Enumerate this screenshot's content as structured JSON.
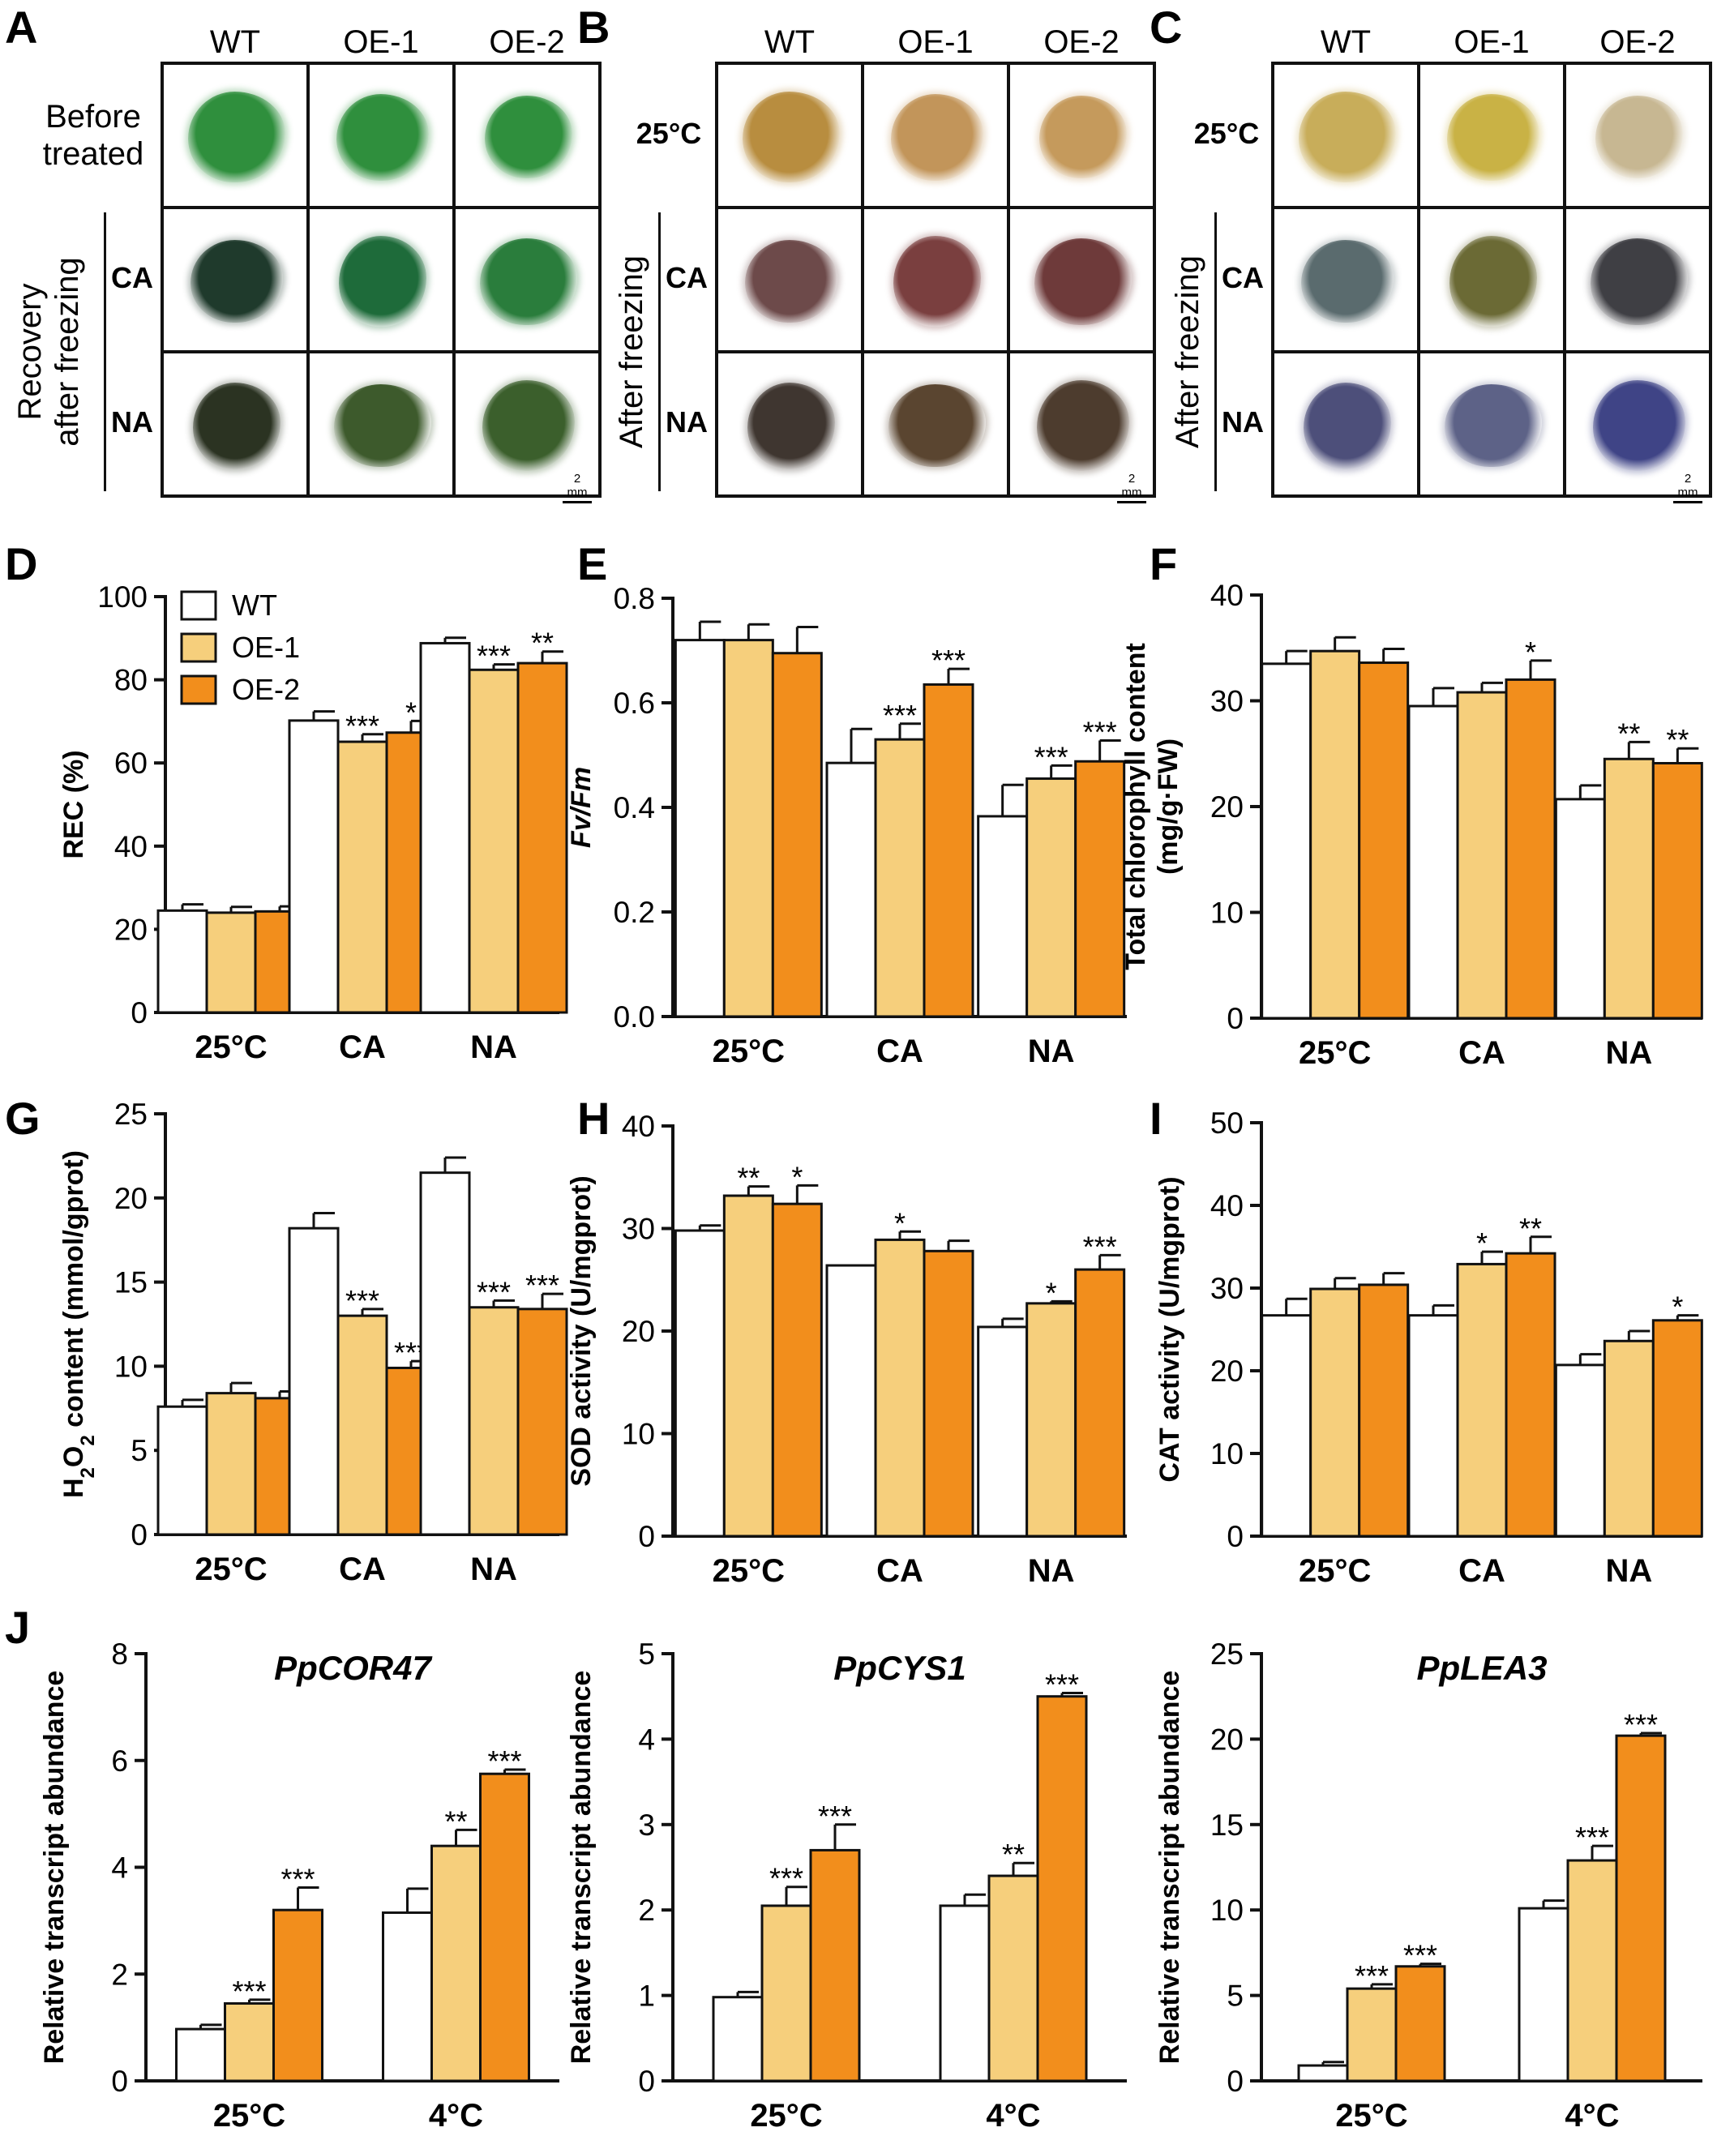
{
  "panel_letters": [
    "A",
    "B",
    "C",
    "D",
    "E",
    "F",
    "G",
    "H",
    "I",
    "J"
  ],
  "photo_panels": [
    {
      "letter": "A",
      "columns": [
        "WT",
        "OE-1",
        "OE-2"
      ],
      "rows": [
        {
          "label": "Before\ntreated",
          "bold": false
        },
        {
          "label": "CA",
          "bold": true
        },
        {
          "label": "NA",
          "bold": true
        }
      ],
      "side_label": "Recovery\nafter freezing",
      "scale": "2 mm",
      "tissue_colors": [
        [
          "#2f8f3d",
          "#2f8f3d",
          "#2f8f3d"
        ],
        [
          "#1f3a2c",
          "#1e6b3a",
          "#2a7d3c"
        ],
        [
          "#2b3322",
          "#3d5a2c",
          "#3b5f2c"
        ]
      ]
    },
    {
      "letter": "B",
      "columns": [
        "WT",
        "OE-1",
        "OE-2"
      ],
      "rows": [
        {
          "label": "25°C",
          "bold": true
        },
        {
          "label": "CA",
          "bold": true
        },
        {
          "label": "NA",
          "bold": true
        }
      ],
      "side_label": "After freezing",
      "scale": "2 mm",
      "tissue_colors": [
        [
          "#b88d3f",
          "#c2955a",
          "#c59a5c"
        ],
        [
          "#6d4a4a",
          "#7a3f3f",
          "#6e3a3a"
        ],
        [
          "#3f3630",
          "#5a4530",
          "#4d3c2e"
        ]
      ]
    },
    {
      "letter": "C",
      "columns": [
        "WT",
        "OE-1",
        "OE-2"
      ],
      "rows": [
        {
          "label": "25°C",
          "bold": true
        },
        {
          "label": "CA",
          "bold": true
        },
        {
          "label": "NA",
          "bold": true
        }
      ],
      "side_label": "After freezing",
      "scale": "2 mm",
      "tissue_colors": [
        [
          "#c8ad5a",
          "#c9b245",
          "#c7b792"
        ],
        [
          "#5a6b6e",
          "#6b6a35",
          "#3f3f44"
        ],
        [
          "#4d4f7a",
          "#5d6287",
          "#3f4486"
        ]
      ]
    }
  ],
  "legend": {
    "entries": [
      "WT",
      "OE-1",
      "OE-2"
    ],
    "colors": [
      "#ffffff",
      "#f6cf7c",
      "#f28e1c"
    ]
  },
  "chart_data": [
    {
      "letter": "D",
      "type": "bar",
      "categories": [
        "25°C",
        "CA",
        "NA"
      ],
      "ylabel": "REC (%)",
      "ylabel_italic": false,
      "ylim": [
        0,
        100
      ],
      "ticks": [
        "0",
        "20",
        "40",
        "60",
        "80",
        "100"
      ],
      "series": [
        {
          "name": "WT",
          "values": [
            24.5,
            70.2,
            88.8
          ],
          "errors": [
            1.5,
            2.2,
            1.3
          ],
          "sig": [
            "",
            "",
            ""
          ]
        },
        {
          "name": "OE-1",
          "values": [
            24.0,
            65.1,
            82.4
          ],
          "errors": [
            1.4,
            1.8,
            1.3
          ],
          "sig": [
            "",
            "***",
            "***"
          ]
        },
        {
          "name": "OE-2",
          "values": [
            24.3,
            67.3,
            84.0
          ],
          "errors": [
            1.2,
            2.8,
            2.8
          ],
          "sig": [
            "",
            "*",
            "**"
          ]
        }
      ]
    },
    {
      "letter": "E",
      "type": "bar",
      "categories": [
        "25°C",
        "CA",
        "NA"
      ],
      "ylabel": "Fv/Fm",
      "ylabel_italic": true,
      "ylim": [
        0,
        0.8
      ],
      "ticks": [
        "0.0",
        "0.2",
        "0.4",
        "0.6",
        "0.8"
      ],
      "series": [
        {
          "name": "WT",
          "values": [
            0.72,
            0.485,
            0.383
          ],
          "errors": [
            0.035,
            0.065,
            0.06
          ],
          "sig": [
            "",
            "",
            ""
          ]
        },
        {
          "name": "OE-1",
          "values": [
            0.72,
            0.53,
            0.455
          ],
          "errors": [
            0.03,
            0.03,
            0.025
          ],
          "sig": [
            "",
            "***",
            "***"
          ]
        },
        {
          "name": "OE-2",
          "values": [
            0.695,
            0.635,
            0.488
          ],
          "errors": [
            0.05,
            0.03,
            0.04
          ],
          "sig": [
            "",
            "***",
            "***"
          ]
        }
      ]
    },
    {
      "letter": "F",
      "type": "bar",
      "categories": [
        "25°C",
        "CA",
        "NA"
      ],
      "ylabel": "Total chlorophyll  content\n(mg/g·FW)",
      "ylabel_italic": false,
      "ylim": [
        0,
        40
      ],
      "ticks": [
        "0",
        "10",
        "20",
        "30",
        "40"
      ],
      "series": [
        {
          "name": "WT",
          "values": [
            33.5,
            29.5,
            20.7
          ],
          "errors": [
            1.2,
            1.7,
            1.3
          ],
          "sig": [
            "",
            "",
            ""
          ]
        },
        {
          "name": "OE-1",
          "values": [
            34.7,
            30.8,
            24.5
          ],
          "errors": [
            1.3,
            0.9,
            1.6
          ],
          "sig": [
            "",
            "",
            "**"
          ]
        },
        {
          "name": "OE-2",
          "values": [
            33.6,
            32.0,
            24.1
          ],
          "errors": [
            1.3,
            1.8,
            1.4
          ],
          "sig": [
            "",
            "*",
            "**"
          ]
        }
      ]
    },
    {
      "letter": "G",
      "type": "bar",
      "categories": [
        "25°C",
        "CA",
        "NA"
      ],
      "ylabel": "H2O2 content (mmol/gprot)",
      "ylabel_italic": false,
      "ylim": [
        0,
        25
      ],
      "ticks": [
        "0",
        "5",
        "10",
        "15",
        "20",
        "25"
      ],
      "series": [
        {
          "name": "WT",
          "values": [
            7.6,
            18.2,
            21.5
          ],
          "errors": [
            0.4,
            0.9,
            0.9
          ],
          "sig": [
            "",
            "",
            ""
          ]
        },
        {
          "name": "OE-1",
          "values": [
            8.4,
            13.0,
            13.5
          ],
          "errors": [
            0.6,
            0.4,
            0.4
          ],
          "sig": [
            "",
            "***",
            "***"
          ]
        },
        {
          "name": "OE-2",
          "values": [
            8.1,
            9.9,
            13.4
          ],
          "errors": [
            0.4,
            0.4,
            0.9
          ],
          "sig": [
            "",
            "***",
            "***"
          ]
        }
      ]
    },
    {
      "letter": "H",
      "type": "bar",
      "categories": [
        "25°C",
        "CA",
        "NA"
      ],
      "ylabel": "SOD activity (U/mgprot)",
      "ylabel_italic": false,
      "ylim": [
        0,
        40
      ],
      "ticks": [
        "0",
        "10",
        "20",
        "30",
        "40"
      ],
      "series": [
        {
          "name": "WT",
          "values": [
            29.8,
            26.4,
            20.4
          ],
          "errors": [
            0.5,
            0,
            0.8
          ],
          "sig": [
            "",
            "",
            ""
          ]
        },
        {
          "name": "OE-1",
          "values": [
            33.2,
            28.9,
            22.7
          ],
          "errors": [
            0.9,
            0.8,
            0.2
          ],
          "sig": [
            "**",
            "*",
            "*"
          ]
        },
        {
          "name": "OE-2",
          "values": [
            32.4,
            27.8,
            26.0
          ],
          "errors": [
            1.8,
            1.0,
            1.4
          ],
          "sig": [
            "*",
            "",
            "***"
          ]
        }
      ]
    },
    {
      "letter": "I",
      "type": "bar",
      "categories": [
        "25°C",
        "CA",
        "NA"
      ],
      "ylabel": "CAT activity (U/mgprot)",
      "ylabel_italic": false,
      "ylim": [
        0,
        50
      ],
      "ticks": [
        "0",
        "10",
        "20",
        "30",
        "40",
        "50"
      ],
      "series": [
        {
          "name": "WT",
          "values": [
            26.7,
            26.7,
            20.7
          ],
          "errors": [
            2.0,
            1.2,
            1.3
          ],
          "sig": [
            "",
            "",
            ""
          ]
        },
        {
          "name": "OE-1",
          "values": [
            29.9,
            32.9,
            23.6
          ],
          "errors": [
            1.3,
            1.5,
            1.2
          ],
          "sig": [
            "",
            "*",
            ""
          ]
        },
        {
          "name": "OE-2",
          "values": [
            30.4,
            34.2,
            26.1
          ],
          "errors": [
            1.4,
            2.0,
            0.6
          ],
          "sig": [
            "",
            "**",
            "*"
          ]
        }
      ]
    },
    {
      "letter": "J",
      "type": "bar",
      "title": "PpCOR47",
      "categories": [
        "25°C",
        "4°C"
      ],
      "ylabel": "Relative transcript abundance",
      "ylabel_italic": false,
      "ylim": [
        0,
        8
      ],
      "ticks": [
        "0",
        "2",
        "4",
        "6",
        "8"
      ],
      "series": [
        {
          "name": "WT",
          "values": [
            0.97,
            3.15
          ],
          "errors": [
            0.08,
            0.45
          ],
          "sig": [
            "",
            ""
          ]
        },
        {
          "name": "OE-1",
          "values": [
            1.45,
            4.4
          ],
          "errors": [
            0.07,
            0.3
          ],
          "sig": [
            "***",
            "**"
          ]
        },
        {
          "name": "OE-2",
          "values": [
            3.2,
            5.75
          ],
          "errors": [
            0.42,
            0.08
          ],
          "sig": [
            "***",
            "***"
          ]
        }
      ]
    },
    {
      "letter": "",
      "type": "bar",
      "title": "PpCYS1",
      "categories": [
        "25°C",
        "4°C"
      ],
      "ylabel": "Relative transcript abundance",
      "ylabel_italic": false,
      "ylim": [
        0,
        5
      ],
      "ticks": [
        "0",
        "1",
        "2",
        "3",
        "4",
        "5"
      ],
      "series": [
        {
          "name": "WT",
          "values": [
            0.98,
            2.05
          ],
          "errors": [
            0.06,
            0.13
          ],
          "sig": [
            "",
            ""
          ]
        },
        {
          "name": "OE-1",
          "values": [
            2.05,
            2.4
          ],
          "errors": [
            0.22,
            0.15
          ],
          "sig": [
            "***",
            "**"
          ]
        },
        {
          "name": "OE-2",
          "values": [
            2.7,
            4.5
          ],
          "errors": [
            0.3,
            0.04
          ],
          "sig": [
            "***",
            "***"
          ]
        }
      ]
    },
    {
      "letter": "",
      "type": "bar",
      "title": "PpLEA3",
      "categories": [
        "25°C",
        "4°C"
      ],
      "ylabel": "Relative transcript abundance",
      "ylabel_italic": false,
      "ylim": [
        0,
        25
      ],
      "ticks": [
        "0",
        "5",
        "10",
        "15",
        "20",
        "25"
      ],
      "series": [
        {
          "name": "WT",
          "values": [
            0.9,
            10.1
          ],
          "errors": [
            0.2,
            0.45
          ],
          "sig": [
            "",
            ""
          ]
        },
        {
          "name": "OE-1",
          "values": [
            5.4,
            12.9
          ],
          "errors": [
            0.25,
            0.85
          ],
          "sig": [
            "***",
            "***"
          ]
        },
        {
          "name": "OE-2",
          "values": [
            6.7,
            20.2
          ],
          "errors": [
            0.15,
            0.15
          ],
          "sig": [
            "***",
            "***"
          ]
        }
      ]
    }
  ]
}
